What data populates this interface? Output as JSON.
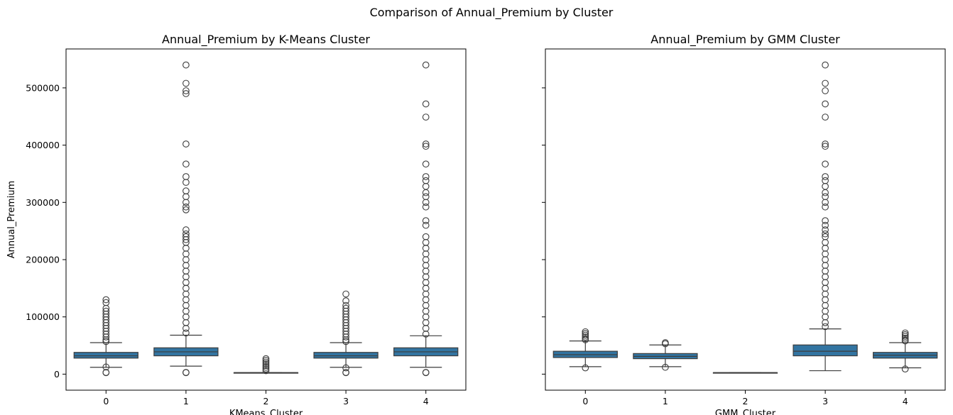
{
  "suptitle": "Comparison of Annual_Premium by Cluster",
  "colors": {
    "box_fill": "#3274a1",
    "line": "#3d3d3d",
    "axes": "#000000",
    "background": "#ffffff"
  },
  "chart_data": [
    {
      "type": "box",
      "title": "Annual_Premium by K-Means Cluster",
      "xlabel": "KMeans_Cluster",
      "ylabel": "Annual_Premium",
      "ylim": [
        -28000,
        568000
      ],
      "yticks": [
        0,
        100000,
        200000,
        300000,
        400000,
        500000
      ],
      "ytick_labels": [
        "0",
        "100000",
        "200000",
        "300000",
        "400000",
        "500000"
      ],
      "categories": [
        "0",
        "1",
        "2",
        "3",
        "4"
      ],
      "boxes": [
        {
          "category": "0",
          "whisker_low": 12000,
          "q1": 28000,
          "median": 32000,
          "q3": 38000,
          "whisker_high": 55000,
          "outliers_high": [
            130000,
            125000,
            115000,
            110000,
            105000,
            100000,
            95000,
            90000,
            85000,
            80000,
            75000,
            70000,
            65000,
            60000,
            57000
          ],
          "outliers_low": [
            12500,
            3000,
            2630
          ]
        },
        {
          "category": "1",
          "whisker_low": 14000,
          "q1": 32000,
          "median": 39000,
          "q3": 46000,
          "whisker_high": 68000,
          "outliers_high": [
            540000,
            508000,
            495000,
            490000,
            402000,
            367000,
            345000,
            335000,
            320000,
            310000,
            300000,
            292000,
            287000,
            252000,
            245000,
            240000,
            235000,
            230000,
            220000,
            210000,
            200000,
            190000,
            180000,
            170000,
            160000,
            150000,
            140000,
            130000,
            120000,
            110000,
            100000,
            90000,
            80000,
            72000
          ],
          "outliers_low": [
            3000,
            2630
          ]
        },
        {
          "category": "2",
          "whisker_low": 2630,
          "q1": 2630,
          "median": 2630,
          "q3": 2630,
          "whisker_high": 2630,
          "outliers_high": [
            27000,
            24000,
            21000,
            18000,
            15000,
            12000,
            9000,
            6000
          ],
          "outliers_low": []
        },
        {
          "category": "3",
          "whisker_low": 12000,
          "q1": 28000,
          "median": 32000,
          "q3": 38000,
          "whisker_high": 55000,
          "outliers_high": [
            140000,
            128000,
            120000,
            115000,
            110000,
            105000,
            100000,
            95000,
            90000,
            85000,
            80000,
            75000,
            70000,
            65000,
            60000,
            57000
          ],
          "outliers_low": [
            11000,
            3000,
            2630
          ]
        },
        {
          "category": "4",
          "whisker_low": 12000,
          "q1": 32000,
          "median": 39000,
          "q3": 46000,
          "whisker_high": 67000,
          "outliers_high": [
            540000,
            472000,
            449000,
            402000,
            398000,
            367000,
            345000,
            338000,
            328000,
            317000,
            310000,
            300000,
            292000,
            268000,
            260000,
            240000,
            230000,
            220000,
            210000,
            200000,
            190000,
            180000,
            170000,
            160000,
            150000,
            140000,
            130000,
            120000,
            110000,
            100000,
            90000,
            80000,
            70000
          ],
          "outliers_low": [
            3000,
            2630
          ]
        }
      ]
    },
    {
      "type": "box",
      "title": "Annual_Premium by GMM Cluster",
      "xlabel": "GMM_Cluster",
      "ylabel": "",
      "ylim": [
        -28000,
        568000
      ],
      "yticks": [
        0,
        100000,
        200000,
        300000,
        400000,
        500000
      ],
      "ytick_labels": [],
      "categories": [
        "0",
        "1",
        "2",
        "3",
        "4"
      ],
      "boxes": [
        {
          "category": "0",
          "whisker_low": 13000,
          "q1": 29000,
          "median": 34000,
          "q3": 40000,
          "whisker_high": 58000,
          "outliers_high": [
            74000,
            71000,
            68000,
            65000,
            62000,
            60000
          ],
          "outliers_low": [
            11000
          ]
        },
        {
          "category": "1",
          "whisker_low": 13000,
          "q1": 27000,
          "median": 31000,
          "q3": 36000,
          "whisker_high": 51000,
          "outliers_high": [
            55000,
            53000
          ],
          "outliers_low": [
            12000
          ]
        },
        {
          "category": "2",
          "whisker_low": 2630,
          "q1": 2630,
          "median": 2630,
          "q3": 2630,
          "whisker_high": 2630,
          "outliers_high": [],
          "outliers_low": []
        },
        {
          "category": "3",
          "whisker_low": 6000,
          "q1": 32000,
          "median": 40000,
          "q3": 51000,
          "whisker_high": 79000,
          "outliers_high": [
            540000,
            508000,
            495000,
            472000,
            449000,
            402000,
            398000,
            367000,
            345000,
            338000,
            328000,
            317000,
            310000,
            300000,
            292000,
            268000,
            260000,
            252000,
            245000,
            240000,
            230000,
            220000,
            210000,
            200000,
            190000,
            180000,
            170000,
            160000,
            150000,
            140000,
            130000,
            120000,
            110000,
            100000,
            90000,
            83000
          ],
          "outliers_low": []
        },
        {
          "category": "4",
          "whisker_low": 11000,
          "q1": 28000,
          "median": 33000,
          "q3": 38000,
          "whisker_high": 55000,
          "outliers_high": [
            72000,
            69000,
            66000,
            63000,
            60000,
            58000
          ],
          "outliers_low": [
            9000
          ]
        }
      ]
    }
  ]
}
